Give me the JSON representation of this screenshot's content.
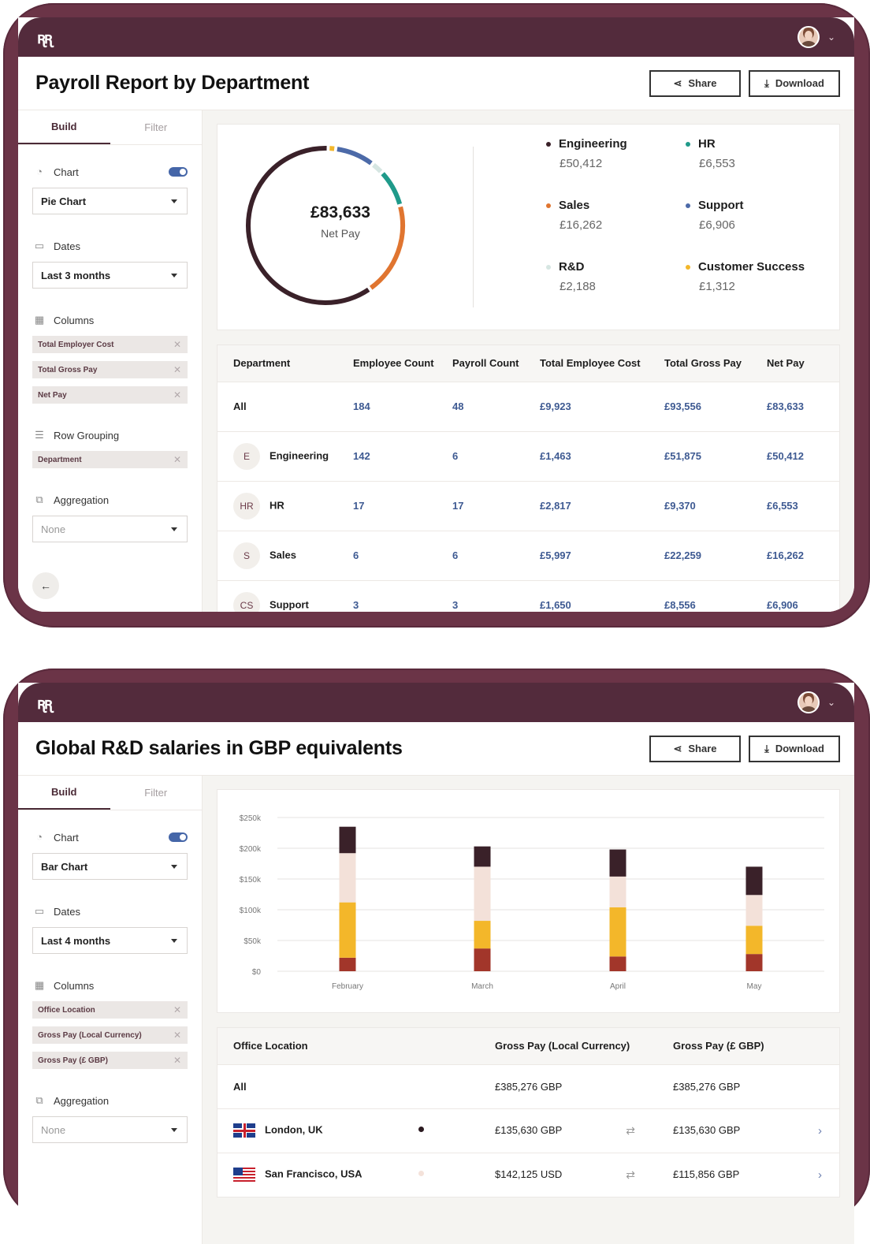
{
  "app": {
    "logo": "ꭆꭆ"
  },
  "panel1": {
    "title": "Payroll Report by Department",
    "share": "Share",
    "download": "Download",
    "tabs": {
      "build": "Build",
      "filter": "Filter"
    },
    "chart_label": "Chart",
    "chart_type": "Pie Chart",
    "dates_label": "Dates",
    "dates_value": "Last 3 months",
    "columns_label": "Columns",
    "columns": [
      "Total Employer Cost",
      "Total Gross Pay",
      "Net Pay"
    ],
    "row_grouping_label": "Row Grouping",
    "row_grouping": [
      "Department"
    ],
    "aggregation_label": "Aggregation",
    "aggregation_placeholder": "None",
    "pie_total": "£83,633",
    "pie_caption": "Net Pay",
    "legend": [
      {
        "name": "Engineering",
        "value": "£50,412",
        "color": "#3a2129"
      },
      {
        "name": "HR",
        "value": "£6,553",
        "color": "#1f9a8a"
      },
      {
        "name": "Sales",
        "value": "£16,262",
        "color": "#e07530"
      },
      {
        "name": "Support",
        "value": "£6,906",
        "color": "#4c6aa8"
      },
      {
        "name": "R&D",
        "value": "£2,188",
        "color": "#d6e6e2"
      },
      {
        "name": "Customer Success",
        "value": "£1,312",
        "color": "#f3b72a"
      }
    ],
    "table": {
      "headers": [
        "Department",
        "Employee Count",
        "Payroll Count",
        "Total Employee Cost",
        "Total Gross Pay",
        "Net Pay"
      ],
      "rows": [
        {
          "badge": "",
          "dept": "All",
          "emp": "184",
          "pay": "48",
          "tec": "£9,923",
          "tgp": "£93,556",
          "net": "£83,633"
        },
        {
          "badge": "E",
          "dept": "Engineering",
          "emp": "142",
          "pay": "6",
          "tec": "£1,463",
          "tgp": "£51,875",
          "net": "£50,412"
        },
        {
          "badge": "HR",
          "dept": "HR",
          "emp": "17",
          "pay": "17",
          "tec": "£2,817",
          "tgp": "£9,370",
          "net": "£6,553"
        },
        {
          "badge": "S",
          "dept": "Sales",
          "emp": "6",
          "pay": "6",
          "tec": "£5,997",
          "tgp": "£22,259",
          "net": "£16,262"
        },
        {
          "badge": "CS",
          "dept": "Support",
          "emp": "3",
          "pay": "3",
          "tec": "£1,650",
          "tgp": "£8,556",
          "net": "£6,906"
        }
      ]
    }
  },
  "panel2": {
    "title": "Global R&D salaries in GBP equivalents",
    "share": "Share",
    "download": "Download",
    "tabs": {
      "build": "Build",
      "filter": "Filter"
    },
    "chart_label": "Chart",
    "chart_type": "Bar Chart",
    "dates_label": "Dates",
    "dates_value": "Last 4 months",
    "columns_label": "Columns",
    "columns": [
      "Office Location",
      "Gross Pay (Local Currency)",
      "Gross Pay (£ GBP)"
    ],
    "aggregation_label": "Aggregation",
    "aggregation_placeholder": "None",
    "table": {
      "headers": [
        "Office Location",
        "Gross Pay (Local Currency)",
        "Gross Pay (£ GBP)"
      ],
      "rows": [
        {
          "flag": "",
          "loc": "All",
          "dot": "",
          "local": "£385,276 GBP",
          "gbp": "£385,276 GBP"
        },
        {
          "flag": "uk",
          "loc": "London, UK",
          "dot": "#2b1a20",
          "local": "£135,630 GBP",
          "gbp": "£135,630 GBP"
        },
        {
          "flag": "us",
          "loc": "San Francisco, USA",
          "dot": "#f4e2da",
          "local": "$142,125 USD",
          "gbp": "£115,856 GBP"
        }
      ]
    }
  },
  "chart_data": [
    {
      "type": "pie",
      "title": "",
      "values": [
        50412,
        6553,
        16262,
        6906,
        2188,
        1312
      ],
      "categories": [
        "Engineering",
        "HR",
        "Sales",
        "Support",
        "R&D",
        "Customer Success"
      ],
      "colors": [
        "#3a2129",
        "#1f9a8a",
        "#e07530",
        "#4c6aa8",
        "#d6e6e2",
        "#f3b72a"
      ]
    },
    {
      "type": "bar",
      "stacked": true,
      "categories": [
        "February",
        "March",
        "April",
        "May"
      ],
      "yticks": [
        "$0",
        "$50k",
        "$100k",
        "$150k",
        "$200k",
        "$250k"
      ],
      "ylim": [
        0,
        250000
      ],
      "series": [
        {
          "values": [
            22000,
            37000,
            24000,
            28000
          ],
          "color": "#a2362a"
        },
        {
          "values": [
            90000,
            45000,
            80000,
            46000
          ],
          "color": "#f3b72a"
        },
        {
          "values": [
            80000,
            88000,
            50000,
            50000
          ],
          "color": "#f3e1d9"
        },
        {
          "values": [
            43000,
            33000,
            44000,
            46000
          ],
          "color": "#3a2129"
        }
      ]
    }
  ]
}
